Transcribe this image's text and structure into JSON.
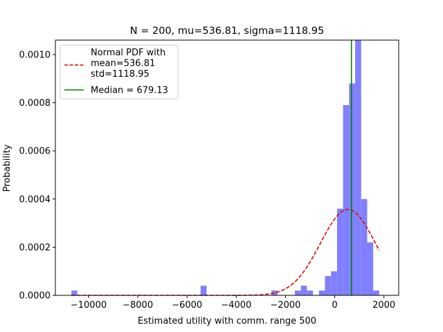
{
  "chart_data": {
    "type": "bar",
    "title": "N = 200, mu=536.81, sigma=1118.95",
    "xlabel": "Estimated utility with comm. range 500",
    "ylabel": "Probability",
    "xlim": [
      -11350,
      2600
    ],
    "ylim": [
      0,
      0.00106
    ],
    "xticks": [
      -10000,
      -8000,
      -6000,
      -4000,
      -2000,
      0,
      2000
    ],
    "xtick_labels": [
      "−10000",
      "−8000",
      "−6000",
      "−4000",
      "−2000",
      "0",
      "2000"
    ],
    "yticks": [
      0,
      0.0002,
      0.0004,
      0.0006,
      0.0008,
      0.001
    ],
    "ytick_labels": [
      "0.0000",
      "0.0002",
      "0.0004",
      "0.0006",
      "0.0008",
      "0.0010"
    ],
    "grid": false,
    "legend_position": "top-left",
    "histogram": {
      "color": "#8080ff",
      "bin_width": 245,
      "bins": [
        {
          "x0": -10700,
          "density": 2e-05
        },
        {
          "x0": -5450,
          "density": 4e-05
        },
        {
          "x0": -2570,
          "density": 2e-05
        },
        {
          "x0": -1620,
          "density": 2e-05
        },
        {
          "x0": -1375,
          "density": 4e-05
        },
        {
          "x0": -1130,
          "density": 2e-05
        },
        {
          "x0": -640,
          "density": 2e-05
        },
        {
          "x0": -395,
          "density": 8e-05
        },
        {
          "x0": -150,
          "density": 0.0001
        },
        {
          "x0": 95,
          "density": 0.00036
        },
        {
          "x0": 340,
          "density": 0.00079
        },
        {
          "x0": 585,
          "density": 0.00088
        },
        {
          "x0": 830,
          "density": 0.00106
        },
        {
          "x0": 1075,
          "density": 0.0004
        },
        {
          "x0": 1320,
          "density": 0.00022
        },
        {
          "x0": 1565,
          "density": 2e-05
        }
      ]
    },
    "normal_pdf": {
      "name": "Normal PDF with\nmean=536.81\nstd=1118.95",
      "mean": 536.81,
      "std": 1118.95,
      "x_range": [
        -10700,
        1810
      ],
      "color": "#e00000",
      "style": "dashed"
    },
    "median_line": {
      "name": "Median = 679.13",
      "x": 679.13,
      "color": "#008000"
    }
  }
}
